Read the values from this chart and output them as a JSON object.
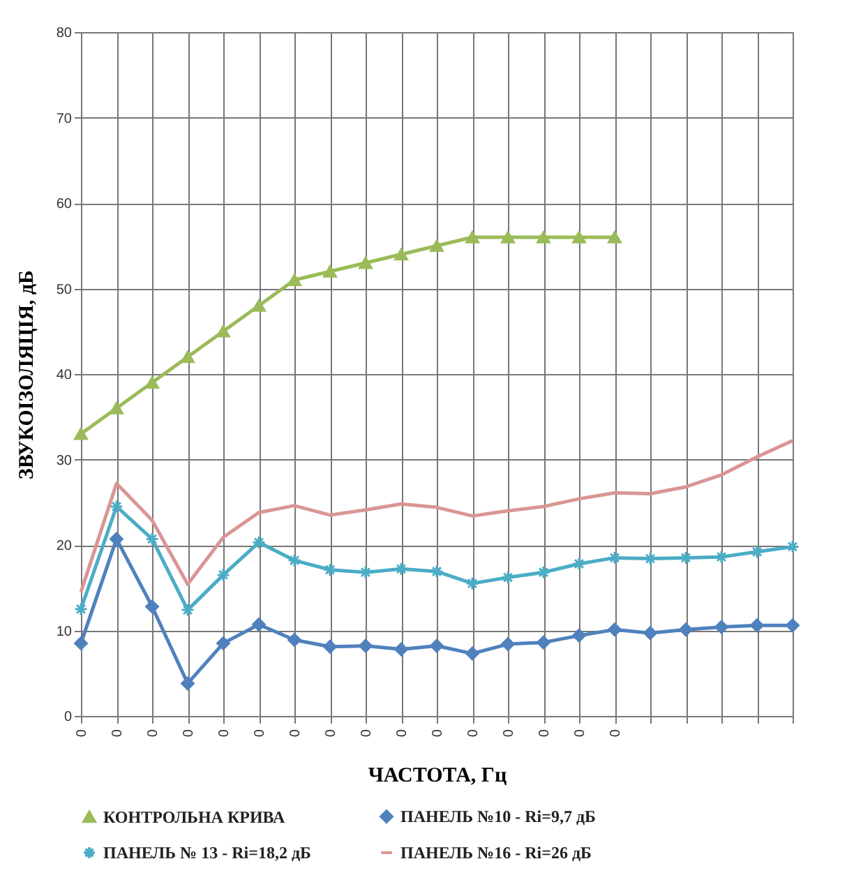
{
  "chart_data": {
    "type": "line",
    "xlabel": "ЧАСТОТА, Гц",
    "ylabel": "ЗВУКОІЗОЛЯЦІЯ, дБ",
    "categories": [
      "0",
      "0",
      "0",
      "0",
      "0",
      "0",
      "0",
      "0",
      "0",
      "0",
      "0",
      "0",
      "0",
      "0",
      "0",
      "0",
      null,
      null,
      null,
      null,
      null
    ],
    "ylim": [
      0,
      80
    ],
    "yticks": [
      0,
      10,
      20,
      30,
      40,
      50,
      60,
      70,
      80
    ],
    "grid": true,
    "legend": "bottom",
    "series": [
      {
        "name": "КОНТРОЛЬНА КРИВА",
        "color": "#9bbb59",
        "marker": "triangle",
        "values": [
          33,
          36,
          39,
          42,
          45,
          48,
          51,
          52,
          53,
          54,
          55,
          56,
          56,
          56,
          56,
          56,
          null,
          null,
          null,
          null,
          null
        ]
      },
      {
        "name": "ПАНЕЛЬ №10 -  Ri=9,7  дБ",
        "color": "#4f81bd",
        "marker": "diamond",
        "values": [
          8.5,
          20.7,
          12.8,
          3.8,
          8.5,
          10.7,
          8.9,
          8.1,
          8.2,
          7.8,
          8.2,
          7.3,
          8.4,
          8.6,
          9.4,
          10.1,
          9.7,
          10.1,
          10.4,
          10.6,
          10.6
        ]
      },
      {
        "name": "ПАНЕЛЬ № 13 -  Ri=18,2  дБ",
        "color": "#4bacc6",
        "marker": "cross",
        "values": [
          12.5,
          24.5,
          20.7,
          12.4,
          16.5,
          20.3,
          18.2,
          17.1,
          16.8,
          17.2,
          16.9,
          15.5,
          16.2,
          16.8,
          17.8,
          18.5,
          18.4,
          18.5,
          18.6,
          19.2,
          19.8
        ]
      },
      {
        "name": "ПАНЕЛЬ №16 - Ri=26  дБ",
        "color": "#d99694",
        "marker": "none",
        "values": [
          14.5,
          27.2,
          22.9,
          15.4,
          20.9,
          23.8,
          24.6,
          23.5,
          24.1,
          24.8,
          24.4,
          23.4,
          24,
          24.5,
          25.4,
          26.1,
          26,
          26.8,
          28.2,
          30.3,
          32.2
        ]
      }
    ]
  }
}
